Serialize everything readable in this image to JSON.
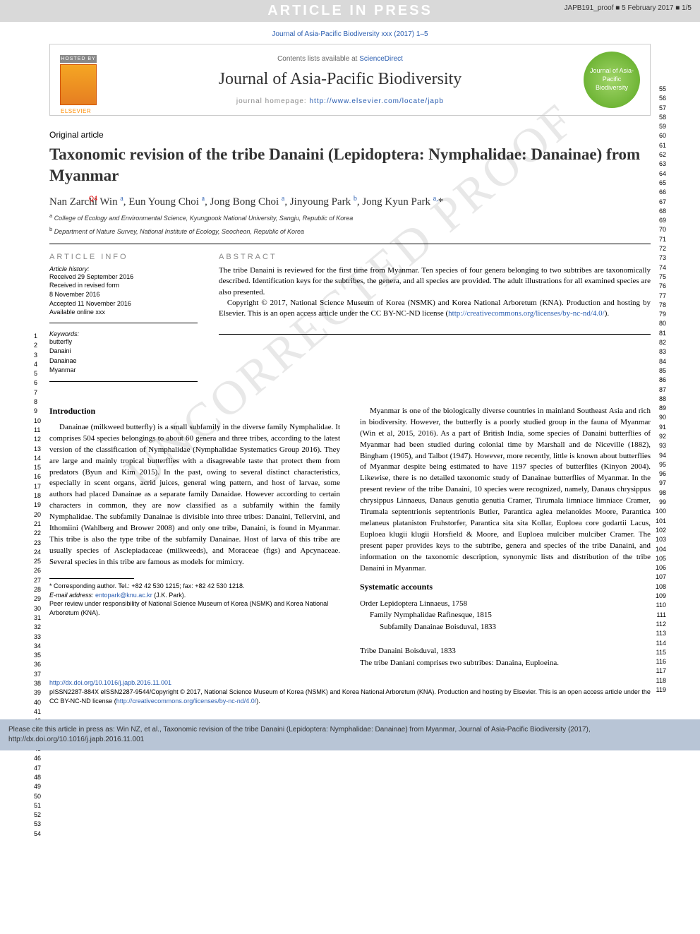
{
  "banner": {
    "text": "ARTICLE IN PRESS",
    "proof_tag": "JAPB191_proof ■ 5 February 2017 ■ 1/5",
    "bg_color": "#d9d9d9",
    "text_color": "#ffffff"
  },
  "watermark": "UNCORRECTED PROOF",
  "journal_ref": "Journal of Asia-Pacific Biodiversity xxx (2017) 1–5",
  "header": {
    "hosted_by": "HOSTED BY",
    "elsevier": "ELSEVIER",
    "contents_prefix": "Contents lists available at ",
    "contents_link": "ScienceDirect",
    "journal_name": "Journal of Asia-Pacific Biodiversity",
    "homepage_prefix": "journal homepage: ",
    "homepage_url": "http://www.elsevier.com/locate/japb",
    "badge_text": "Journal of Asia-Pacific Biodiversity",
    "badge_color": "#6fb536"
  },
  "article": {
    "type": "Original article",
    "title": "Taxonomic revision of the tribe Danaini (Lepidoptera: Nymphalidae: Danainae) from Myanmar",
    "title_fontsize": 23,
    "q_marker": "Q4",
    "authors_html": "Nan Zarchi Win <sup>a</sup>, Eun Young Choi <sup>a</sup>, Jong Bong Choi <sup>a</sup>, Jinyoung Park <sup>b</sup>, Jong Kyun Park <sup>a,</sup>*",
    "affiliations": [
      "a College of Ecology and Environmental Science, Kyungpook National University, Sangju, Republic of Korea",
      "b Department of Nature Survey, National Institute of Ecology, Seocheon, Republic of Korea"
    ]
  },
  "info": {
    "heading": "ARTICLE INFO",
    "history_label": "Article history:",
    "history": [
      "Received 29 September 2016",
      "Received in revised form",
      "8 November 2016",
      "Accepted 11 November 2016",
      "Available online xxx"
    ],
    "keywords_label": "Keywords:",
    "keywords": [
      "butterfly",
      "Danaini",
      "Danainae",
      "Myanmar"
    ]
  },
  "abstract": {
    "heading": "ABSTRACT",
    "text": "The tribe Danaini is reviewed for the first time from Myanmar. Ten species of four genera belonging to two subtribes are taxonomically described. Identification keys for the subtribes, the genera, and all species are provided. The adult illustrations for all examined species are also presented.",
    "copyright": "Copyright © 2017, National Science Museum of Korea (NSMK) and Korea National Arboretum (KNA). Production and hosting by Elsevier. This is an open access article under the CC BY-NC-ND license (",
    "license_url": "http://creativecommons.org/licenses/by-nc-nd/4.0/",
    "license_close": ")."
  },
  "body": {
    "intro_head": "Introduction",
    "para1": "Danainae (milkweed butterfly) is a small subfamily in the diverse family Nymphalidae. It comprises 504 species belongings to about 60 genera and three tribes, according to the latest version of the classification of Nymphalidae (Nymphalidae Systematics Group 2016). They are large and mainly tropical butterflies with a disagreeable taste that protect them from predators (Byun and Kim 2015). In the past, owing to several distinct characteristics, especially in scent organs, acrid juices, general wing pattern, and host of larvae, some authors had placed Danainae as a separate family Danaidae. However according to certain characters in common, they are now classified as a subfamily within the family Nymphalidae. The subfamily Danainae is divisible into three tribes: Danaini, Tellervini, and Ithomiini (Wahlberg and Brower 2008) and only one tribe, Danaini, is found in Myanmar. This tribe is also the type tribe of the subfamily Danainae. Host of larva of this tribe are usually species of Asclepiadaceae (milkweeds), and Moraceae (figs) and Apcynaceae. Several species in this tribe are famous as models for mimicry.",
    "para2": "Myanmar is one of the biologically diverse countries in mainland Southeast Asia and rich in biodiversity. However, the butterfly is a poorly studied group in the fauna of Myanmar (Win et al, 2015, 2016). As a part of British India, some species of Danaini butterflies of Myanmar had been studied during colonial time by Marshall and de Niceville (1882), Bingham (1905), and Talbot (1947). However, more recently, little is known about butterflies of Myanmar despite being estimated to have 1197 species of butterflies (Kinyon 2004). Likewise, there is no detailed taxonomic study of Danainae butterflies of Myanmar. In the present review of the tribe Danaini, 10 species were recognized, namely, Danaus chrysippus chrysippus Linnaeus, Danaus genutia genutia Cramer, Tirumala limniace limniace Cramer, Tirumala septentrionis septentrionis Butler, Parantica aglea melanoides Moore, Parantica melaneus plataniston Fruhstorfer, Parantica sita sita Kollar, Euploea core godartii Lacus, Euploea klugii klugii Horsfield & Moore, and Euploea mulciber mulciber Cramer. The present paper provides keys to the subtribe, genera and species of the tribe Danaini, and information on the taxonomic description, synonymic lists and distribution of the tribe Danaini in Myanmar.",
    "sys_head": "Systematic accounts",
    "sys_lines": [
      "Order Lepidoptera Linnaeus, 1758",
      "Family Nymphalidae Rafinesque, 1815",
      "Subfamily Danainae Boisduval, 1833"
    ],
    "tribe_head": "Tribe Danaini Boisduval, 1833",
    "tribe_text_prefix": "The tribe Daniani comprises two subtribes: ",
    "tribe_text_italic": "Danaina, Euploeina."
  },
  "footnotes": {
    "corr": "* Corresponding author. Tel.: +82 42 530 1215; fax: +82 42 530 1218.",
    "email_label": "E-mail address: ",
    "email": "entopark@knu.ac.kr",
    "email_suffix": " (J.K. Park).",
    "peer": "Peer review under responsibility of National Science Museum of Korea (NSMK) and Korea National Arboretum (KNA)."
  },
  "bottom": {
    "doi": "http://dx.doi.org/10.1016/j.japb.2016.11.001",
    "issn": "pISSN2287-884X eISSN2287-9544/Copyright © 2017, National Science Museum of Korea (NSMK) and Korea National Arboretum (KNA). Production and hosting by Elsevier. This is an open access article under the CC BY-NC-ND license (",
    "license_url": "http://creativecommons.org/licenses/by-nc-nd/4.0/",
    "license_close": ")."
  },
  "cite_box": "Please cite this article in press as: Win NZ, et al., Taxonomic revision of the tribe Danaini (Lepidoptera: Nymphalidae: Danainae) from Myanmar, Journal of Asia-Pacific Biodiversity (2017), http://dx.doi.org/10.1016/j.japb.2016.11.001",
  "line_numbers": {
    "left_start": 1,
    "left_end": 54,
    "right_start": 55,
    "right_end": 119
  },
  "colors": {
    "link": "#2a5db0",
    "text": "#000000",
    "gray": "#888888",
    "watermark": "#e8e8e8",
    "cite_bg": "#b8c5d6"
  }
}
